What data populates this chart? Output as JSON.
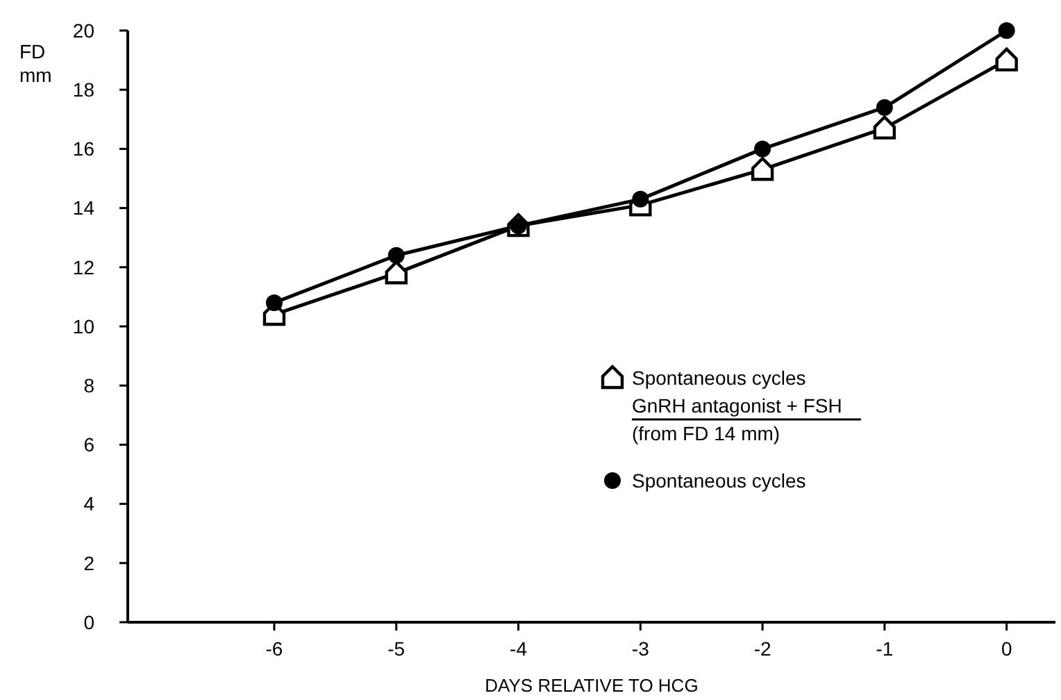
{
  "chart_data": {
    "type": "line",
    "xlabel": "DAYS RELATIVE TO HCG",
    "ylabel": "FD\nmm",
    "x": [
      -6,
      -5,
      -4,
      -3,
      -2,
      -1,
      0
    ],
    "xlim": [
      -7.2,
      0.4
    ],
    "xticks": [
      -6,
      -5,
      -4,
      -3,
      -2,
      -1,
      0
    ],
    "ylim": [
      0,
      20
    ],
    "yticks": [
      0,
      2,
      4,
      6,
      8,
      10,
      12,
      14,
      16,
      18,
      20
    ],
    "grid": false,
    "legend": "bottom right",
    "line_style": "solid",
    "series": [
      {
        "name": "Spontaneous cycles\nGnRH antagonist + FSH\n(from FD 14 mm)",
        "color": "#000000",
        "marker": "square",
        "values": [
          10.4,
          11.8,
          13.4,
          14.1,
          15.3,
          16.7,
          19.0
        ]
      },
      {
        "name": "Spontaneous cycles",
        "color": "#000000",
        "marker": "circle",
        "values": [
          10.8,
          12.4,
          13.4,
          14.3,
          16.0,
          17.4,
          20.0
        ]
      }
    ]
  }
}
